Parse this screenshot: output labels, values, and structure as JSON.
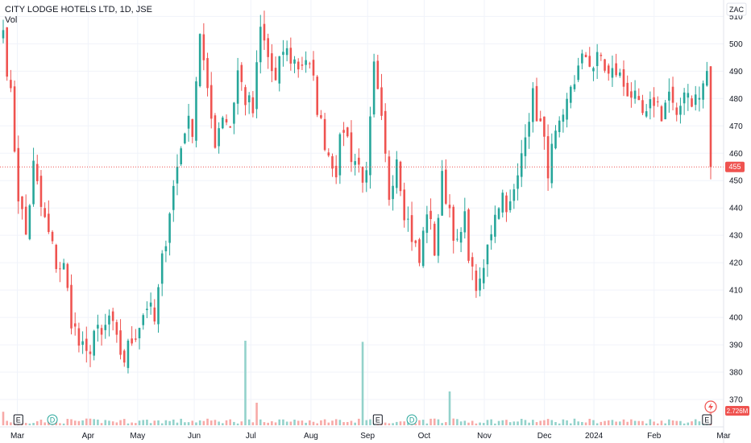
{
  "chart_data": {
    "type": "candlestick",
    "title": "CITY LODGE HOTELS LTD, 1D, JSE",
    "volume_label": "Vol",
    "currency": "ZAC",
    "last_price": 455,
    "last_volume_label": "2.726M",
    "ylim": [
      360,
      516
    ],
    "y_ticks": [
      370,
      380,
      390,
      400,
      410,
      420,
      430,
      440,
      450,
      460,
      470,
      480,
      490,
      500,
      510
    ],
    "x_ticks": [
      {
        "label": "Mar",
        "t": 0.02
      },
      {
        "label": "Apr",
        "t": 0.12
      },
      {
        "label": "May",
        "t": 0.19
      },
      {
        "label": "Jun",
        "t": 0.27
      },
      {
        "label": "Jul",
        "t": 0.35
      },
      {
        "label": "Aug",
        "t": 0.435
      },
      {
        "label": "Sep",
        "t": 0.515
      },
      {
        "label": "Oct",
        "t": 0.595
      },
      {
        "label": "Nov",
        "t": 0.68
      },
      {
        "label": "Dec",
        "t": 0.765
      },
      {
        "label": "2024",
        "t": 0.835
      },
      {
        "label": "Feb",
        "t": 0.92
      },
      {
        "label": "Mar",
        "t": 1.0
      }
    ],
    "anchors": [
      [
        0,
        505
      ],
      [
        2,
        480
      ],
      [
        4,
        445
      ],
      [
        6,
        430
      ],
      [
        8,
        455
      ],
      [
        10,
        440
      ],
      [
        12,
        430
      ],
      [
        14,
        420
      ],
      [
        16,
        418
      ],
      [
        18,
        400
      ],
      [
        20,
        390
      ],
      [
        22,
        385
      ],
      [
        24,
        395
      ],
      [
        26,
        392
      ],
      [
        28,
        400
      ],
      [
        30,
        390
      ],
      [
        32,
        385
      ],
      [
        34,
        392
      ],
      [
        36,
        398
      ],
      [
        38,
        405
      ],
      [
        40,
        398
      ],
      [
        42,
        420
      ],
      [
        44,
        440
      ],
      [
        46,
        455
      ],
      [
        48,
        470
      ],
      [
        50,
        470
      ],
      [
        52,
        505
      ],
      [
        54,
        480
      ],
      [
        56,
        465
      ],
      [
        58,
        475
      ],
      [
        60,
        470
      ],
      [
        62,
        490
      ],
      [
        64,
        480
      ],
      [
        66,
        475
      ],
      [
        68,
        505
      ],
      [
        70,
        495
      ],
      [
        72,
        485
      ],
      [
        74,
        498
      ],
      [
        76,
        495
      ],
      [
        78,
        492
      ],
      [
        80,
        495
      ],
      [
        82,
        485
      ],
      [
        84,
        470
      ],
      [
        86,
        460
      ],
      [
        88,
        455
      ],
      [
        90,
        470
      ],
      [
        92,
        460
      ],
      [
        94,
        455
      ],
      [
        96,
        450
      ],
      [
        98,
        490
      ],
      [
        100,
        470
      ],
      [
        102,
        445
      ],
      [
        104,
        460
      ],
      [
        106,
        440
      ],
      [
        108,
        430
      ],
      [
        110,
        420
      ],
      [
        112,
        440
      ],
      [
        114,
        425
      ],
      [
        116,
        450
      ],
      [
        118,
        440
      ],
      [
        120,
        425
      ],
      [
        122,
        435
      ],
      [
        124,
        415
      ],
      [
        126,
        410
      ],
      [
        128,
        425
      ],
      [
        130,
        440
      ],
      [
        132,
        445
      ],
      [
        134,
        440
      ],
      [
        136,
        450
      ],
      [
        138,
        470
      ],
      [
        140,
        480
      ],
      [
        142,
        470
      ],
      [
        144,
        455
      ],
      [
        146,
        465
      ],
      [
        148,
        470
      ],
      [
        150,
        485
      ],
      [
        152,
        490
      ],
      [
        154,
        496
      ],
      [
        156,
        492
      ],
      [
        158,
        495
      ],
      [
        160,
        488
      ],
      [
        162,
        490
      ],
      [
        164,
        485
      ],
      [
        166,
        482
      ],
      [
        168,
        475
      ],
      [
        170,
        472
      ],
      [
        172,
        480
      ],
      [
        174,
        475
      ],
      [
        176,
        482
      ],
      [
        178,
        470
      ],
      [
        180,
        485
      ],
      [
        182,
        480
      ],
      [
        184,
        480
      ],
      [
        186,
        490
      ],
      [
        187,
        455
      ]
    ],
    "volume_spikes": [
      {
        "bar": 64,
        "ratio": 0.75
      },
      {
        "bar": 67,
        "ratio": 0.2,
        "down": true
      },
      {
        "bar": 95,
        "ratio": 0.74
      },
      {
        "bar": 118,
        "ratio": 0.3
      },
      {
        "bar": 0,
        "ratio": 0.12,
        "down": true
      },
      {
        "bar": 187,
        "ratio": 0.12,
        "down": true
      }
    ],
    "events": [
      {
        "type": "E",
        "bar": 4
      },
      {
        "type": "D",
        "bar": 13
      },
      {
        "type": "E",
        "bar": 99
      },
      {
        "type": "D",
        "bar": 108
      },
      {
        "type": "E",
        "bar": 186
      }
    ],
    "colors": {
      "up": "#26a69a",
      "down": "#ef5350",
      "volume_up": "#93d2cb",
      "volume_down": "#f7a9a7",
      "grid": "#f0f3fa",
      "last_price_bg": "#ef5350"
    }
  }
}
